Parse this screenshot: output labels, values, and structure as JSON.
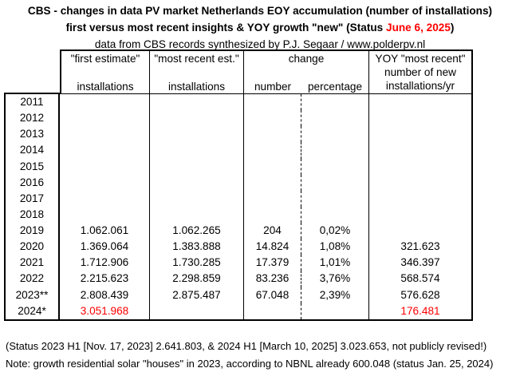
{
  "title": {
    "line1": "CBS - changes in data PV market Netherlands EOY accumulation (number of installations)",
    "line2_prefix": "first versus most recent insights & YOY growth \"new\" (Status ",
    "line2_date": "June 6, 2025",
    "line2_suffix": ")",
    "line3": "data from CBS records synthesized by P.J. Segaar / www.polderpv.nl"
  },
  "colors": {
    "highlight_red": "#ff0000",
    "text": "#000000",
    "background": "#ffffff"
  },
  "table": {
    "headers": {
      "col_first_line1": "\"first estimate\"",
      "col_first_line2": "installations",
      "col_recent_line1": "\"most recent est.\"",
      "col_recent_line2": "installations",
      "col_change": "change",
      "col_change_number": "number",
      "col_change_percentage": "percentage",
      "col_yoy_line1": "YOY \"most recent\"",
      "col_yoy_line2": "number  of new",
      "col_yoy_line3": "installations/yr"
    },
    "rows": [
      {
        "year": "2011",
        "first": "",
        "recent": "",
        "number": "",
        "percentage": "",
        "yoy": "",
        "red": false
      },
      {
        "year": "2012",
        "first": "",
        "recent": "",
        "number": "",
        "percentage": "",
        "yoy": "",
        "red": false
      },
      {
        "year": "2013",
        "first": "",
        "recent": "",
        "number": "",
        "percentage": "",
        "yoy": "",
        "red": false
      },
      {
        "year": "2014",
        "first": "",
        "recent": "",
        "number": "",
        "percentage": "",
        "yoy": "",
        "red": false
      },
      {
        "year": "2015",
        "first": "",
        "recent": "",
        "number": "",
        "percentage": "",
        "yoy": "",
        "red": false
      },
      {
        "year": "2016",
        "first": "",
        "recent": "",
        "number": "",
        "percentage": "",
        "yoy": "",
        "red": false
      },
      {
        "year": "2017",
        "first": "",
        "recent": "",
        "number": "",
        "percentage": "",
        "yoy": "",
        "red": false
      },
      {
        "year": "2018",
        "first": "",
        "recent": "",
        "number": "",
        "percentage": "",
        "yoy": "",
        "red": false
      },
      {
        "year": "2019",
        "first": "1.062.061",
        "recent": "1.062.265",
        "number": "204",
        "percentage": "0,02%",
        "yoy": "",
        "red": false
      },
      {
        "year": "2020",
        "first": "1.369.064",
        "recent": "1.383.888",
        "number": "14.824",
        "percentage": "1,08%",
        "yoy": "321.623",
        "red": false
      },
      {
        "year": "2021",
        "first": "1.712.906",
        "recent": "1.730.285",
        "number": "17.379",
        "percentage": "1,01%",
        "yoy": "346.397",
        "red": false
      },
      {
        "year": "2022",
        "first": "2.215.623",
        "recent": "2.298.859",
        "number": "83.236",
        "percentage": "3,76%",
        "yoy": "568.574",
        "red": false
      },
      {
        "year": "2023**",
        "first": "2.808.439",
        "recent": "2.875.487",
        "number": "67.048",
        "percentage": "2,39%",
        "yoy": "576.628",
        "red": false
      },
      {
        "year": "2024*",
        "first": "3.051.968",
        "recent": "",
        "number": "",
        "percentage": "",
        "yoy": "176.481",
        "red": true
      }
    ]
  },
  "notes": {
    "line1": "(Status 2023 H1 [Nov. 17, 2023] 2.641.803, & 2024 H1 [March 10, 2025] 3.023.653, not publicly revised!)",
    "line2": "Note: growth residential solar \"houses\" in 2023, according to NBNL already 600.048 (status Jan. 25, 2024)"
  }
}
